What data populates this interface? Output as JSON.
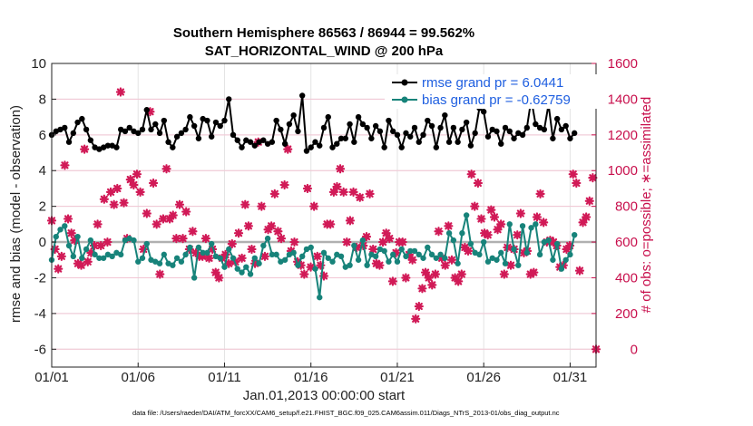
{
  "chart_data": {
    "type": "line",
    "title_line1": "Southern Hemisphere 86563 / 86944 = 99.562%",
    "title_line2": "SAT_HORIZONTAL_WIND @ 200 hPa",
    "xlabel": "Jan.01,2013 00:00:00 start",
    "ylabel": "rmse and bias (model - observation)",
    "ylabel_right": "# of obs: o=possible; ∗=assimilated",
    "xlim": [
      0,
      31.5
    ],
    "ylim": [
      -7,
      10
    ],
    "ylim_right": [
      -100,
      1600
    ],
    "x_ticks": [
      0,
      5,
      10,
      15,
      20,
      25,
      30
    ],
    "x_tick_labels": [
      "01/01",
      "01/06",
      "01/11",
      "01/16",
      "01/21",
      "01/26",
      "01/31"
    ],
    "y_ticks": [
      -6,
      -4,
      -2,
      0,
      2,
      4,
      6,
      8,
      10
    ],
    "y_tick_labels": [
      "-6",
      "-4",
      "-2",
      "0",
      "2",
      "4",
      "6",
      "8",
      "10"
    ],
    "y_right_ticks": [
      0,
      200,
      400,
      600,
      800,
      1000,
      1200,
      1400,
      1600
    ],
    "y_right_tick_labels": [
      "0",
      "200",
      "400",
      "600",
      "800",
      "1000",
      "1200",
      "1400",
      "1600"
    ],
    "grid": true,
    "legend_position": "top-right",
    "footnote": "data file: /Users/raeder/DAI/ATM_forcXX/CAM6_setup/f.e21.FHIST_BGC.f09_025.CAM6assim.011/Diags_NTrS_2013-01/obs_diag_output.nc",
    "series": [
      {
        "name": "rmse grand pr = 6.0441",
        "color": "#000000",
        "axis": "left",
        "values": [
          6.0,
          6.2,
          6.3,
          6.4,
          5.6,
          6.1,
          6.7,
          6.9,
          6.3,
          5.7,
          5.3,
          5.2,
          5.3,
          5.4,
          5.4,
          5.3,
          6.3,
          6.2,
          6.4,
          6.2,
          6.1,
          6.3,
          7.4,
          6.3,
          6.6,
          6.1,
          6.8,
          5.6,
          5.3,
          5.9,
          6.1,
          6.3,
          7.0,
          6.5,
          5.8,
          6.9,
          6.8,
          5.9,
          6.7,
          6.5,
          6.8,
          8.0,
          6.0,
          5.7,
          5.3,
          5.7,
          5.6,
          5.4,
          5.6,
          5.7,
          5.5,
          5.6,
          6.8,
          6.3,
          5.5,
          6.6,
          7.1,
          6.2,
          8.2,
          5.1,
          5.3,
          5.6,
          5.4,
          6.4,
          7.0,
          5.3,
          5.5,
          5.8,
          5.8,
          6.6,
          5.6,
          7.0,
          6.6,
          6.4,
          5.8,
          6.5,
          6.2,
          5.3,
          6.8,
          6.2,
          6.0,
          5.3,
          6.1,
          5.9,
          6.4,
          5.6,
          6.0,
          6.8,
          6.5,
          5.3,
          6.4,
          7.1,
          5.6,
          6.4,
          5.6,
          6.3,
          6.7,
          5.4,
          6.1,
          7.5,
          7.3,
          5.9,
          6.3,
          6.2,
          5.5,
          6.4,
          6.2,
          5.8,
          6.1,
          6.0,
          6.4,
          8.0,
          6.6,
          6.4,
          6.3,
          7.7,
          5.8,
          6.9,
          6.3,
          6.5,
          5.8,
          6.1
        ]
      },
      {
        "name": "bias grand pr = -0.62759",
        "color": "#17837a",
        "axis": "left",
        "values": [
          -1.0,
          0.3,
          0.7,
          0.9,
          -0.2,
          -0.8,
          0.3,
          -0.9,
          -0.4,
          0.1,
          -0.7,
          -0.9,
          -0.9,
          -0.7,
          -0.8,
          -0.6,
          -0.7,
          0.1,
          0.2,
          0.1,
          -1.1,
          -0.9,
          -0.1,
          -1.0,
          -1.1,
          -1.2,
          -0.7,
          -1.2,
          -1.3,
          -0.9,
          -1.1,
          -0.7,
          -0.3,
          -2.0,
          -0.3,
          -0.6,
          -0.6,
          -0.1,
          -0.8,
          -0.9,
          -1.4,
          -0.4,
          -0.9,
          -1.5,
          -1.7,
          -1.4,
          -1.8,
          -0.9,
          -1.2,
          -0.2,
          0.2,
          -0.7,
          -0.7,
          -1.1,
          -1.0,
          -0.7,
          -0.6,
          -1.3,
          -0.8,
          -0.4,
          -0.3,
          -1.5,
          -3.1,
          -0.6,
          -0.9,
          -1.1,
          -0.7,
          -0.8,
          -1.4,
          -1.3,
          -0.2,
          -1.0,
          0.1,
          -1.3,
          -0.7,
          -0.8,
          -0.4,
          -0.5,
          -1.1,
          -0.7,
          -1.1,
          -0.4,
          -0.8,
          -0.5,
          -0.5,
          -0.7,
          -0.9,
          -0.3,
          -0.7,
          -0.9,
          -0.7,
          -0.9,
          0.5,
          0.1,
          -1.2,
          0.5,
          1.5,
          -0.1,
          -0.6,
          -0.7,
          0.0,
          -1.1,
          -0.9,
          -1.0,
          -0.6,
          -1.2,
          1.0,
          -0.4,
          -1.3,
          0.9,
          -0.6,
          0.8,
          1.0,
          -0.7,
          0.0,
          0.1,
          -1.0,
          -0.1,
          -1.5,
          -1.0,
          -0.7,
          0.4
        ]
      }
    ],
    "obs_counts": {
      "name": "assimilated",
      "color": "#d11a57",
      "axis": "right",
      "values": [
        720,
        560,
        450,
        520,
        1030,
        730,
        650,
        610,
        480,
        470,
        1120,
        490,
        540,
        580,
        700,
        580,
        840,
        600,
        880,
        810,
        900,
        1440,
        820,
        620,
        950,
        920,
        980,
        880,
        560,
        760,
        1330,
        930,
        700,
        420,
        730,
        1010,
        730,
        750,
        620,
        810,
        620,
        770,
        560,
        660,
        540,
        520,
        520,
        620,
        510,
        560,
        430,
        400,
        510,
        530,
        480,
        590,
        490,
        650,
        510,
        810,
        690,
        560,
        480,
        1160,
        800,
        520,
        670,
        690,
        870,
        660,
        620,
        920,
        1120,
        550,
        600,
        490,
        470,
        420,
        900,
        460,
        800,
        520,
        470,
        410,
        700,
        700,
        880,
        910,
        1010,
        880,
        600,
        720,
        880,
        570,
        850,
        580,
        630,
        870,
        560,
        480,
        470,
        600,
        650,
        620,
        380,
        540,
        600,
        600,
        400,
        530,
        500,
        170,
        240,
        340,
        430,
        400,
        360,
        420,
        660,
        510,
        470,
        690,
        500,
        400,
        380,
        420,
        570,
        550,
        980,
        800,
        930,
        730,
        650,
        640,
        780,
        740,
        670,
        700,
        420,
        570,
        470,
        560,
        640,
        760,
        540,
        550,
        420,
        430,
        740,
        870,
        710,
        600,
        610,
        600,
        580,
        460,
        470,
        560,
        580,
        980,
        930,
        440,
        710,
        740,
        830,
        960,
        0
      ]
    }
  }
}
